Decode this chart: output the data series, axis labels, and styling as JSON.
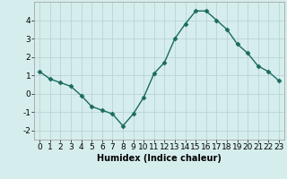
{
  "x": [
    0,
    1,
    2,
    3,
    4,
    5,
    6,
    7,
    8,
    9,
    10,
    11,
    12,
    13,
    14,
    15,
    16,
    17,
    18,
    19,
    20,
    21,
    22,
    23
  ],
  "y": [
    1.2,
    0.8,
    0.6,
    0.4,
    -0.1,
    -0.7,
    -0.9,
    -1.1,
    -1.75,
    -1.1,
    -0.2,
    1.1,
    1.7,
    3.0,
    3.8,
    4.5,
    4.5,
    4.0,
    3.5,
    2.7,
    2.2,
    1.5,
    1.2,
    0.7
  ],
  "line_color": "#1a6b5e",
  "marker": "D",
  "markersize": 2.5,
  "linewidth": 1.0,
  "xlabel": "Humidex (Indice chaleur)",
  "xlim": [
    -0.5,
    23.5
  ],
  "ylim": [
    -2.5,
    5.0
  ],
  "yticks": [
    -2,
    -1,
    0,
    1,
    2,
    3,
    4
  ],
  "xticks": [
    0,
    1,
    2,
    3,
    4,
    5,
    6,
    7,
    8,
    9,
    10,
    11,
    12,
    13,
    14,
    15,
    16,
    17,
    18,
    19,
    20,
    21,
    22,
    23
  ],
  "background_color": "#d6eded",
  "grid_color": "#b8d4d4",
  "xlabel_fontsize": 7,
  "tick_fontsize": 6.5
}
